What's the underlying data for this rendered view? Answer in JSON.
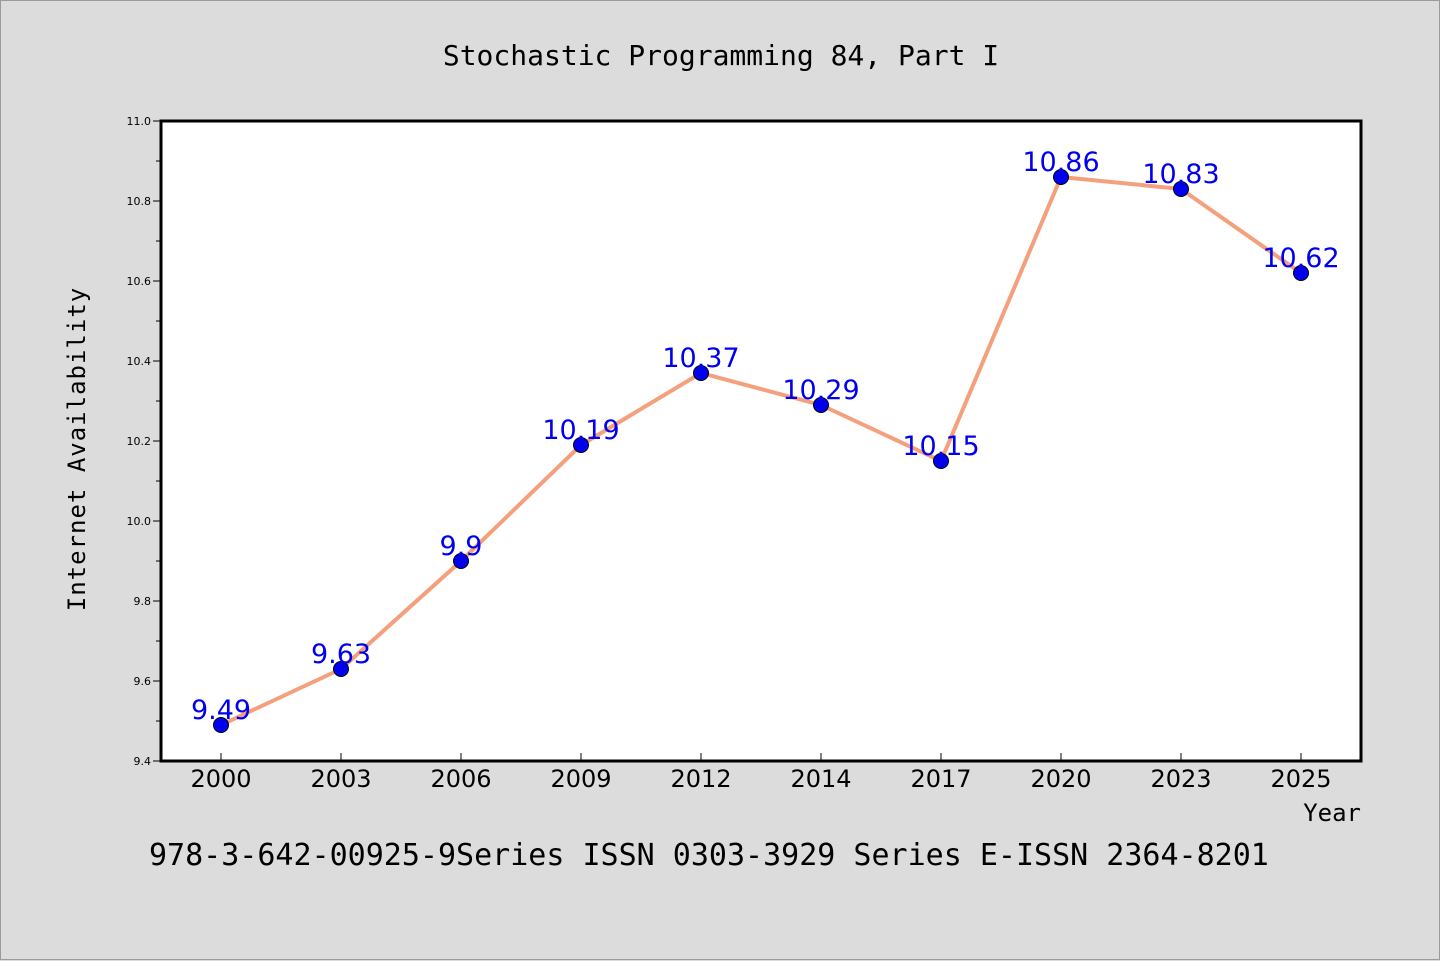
{
  "chart_data": {
    "type": "line",
    "title": "Stochastic Programming 84, Part I",
    "xlabel": "Year",
    "ylabel": "Internet Availability",
    "categories": [
      "2000",
      "2003",
      "2006",
      "2009",
      "2012",
      "2014",
      "2017",
      "2020",
      "2023",
      "2025"
    ],
    "series": [
      {
        "values": [
          9.49,
          9.63,
          9.9,
          10.19,
          10.37,
          10.29,
          10.15,
          10.86,
          10.83,
          10.62
        ],
        "labels": [
          "9.49",
          "9.63",
          "9.9",
          "10.19",
          "10.37",
          "10.29",
          "10.15",
          "10.86",
          "10.83",
          "10.62"
        ],
        "line_color": "#f4a07c",
        "marker_color": "#0000ee",
        "label_color": "#0000ee"
      }
    ],
    "ylim": [
      9.4,
      11.0
    ],
    "yticks": [
      9.4,
      9.6,
      9.8,
      10.0,
      10.2,
      10.4,
      10.6,
      10.8,
      11.0
    ],
    "ytick_labels": [
      "9.4",
      "9.6",
      "9.8",
      "10.0",
      "10.2",
      "10.4",
      "10.6",
      "10.8",
      "11.0"
    ],
    "grid": false,
    "footer": "978-3-642-00925-9Series ISSN 0303-3929 Series E-ISSN 2364-8201"
  }
}
